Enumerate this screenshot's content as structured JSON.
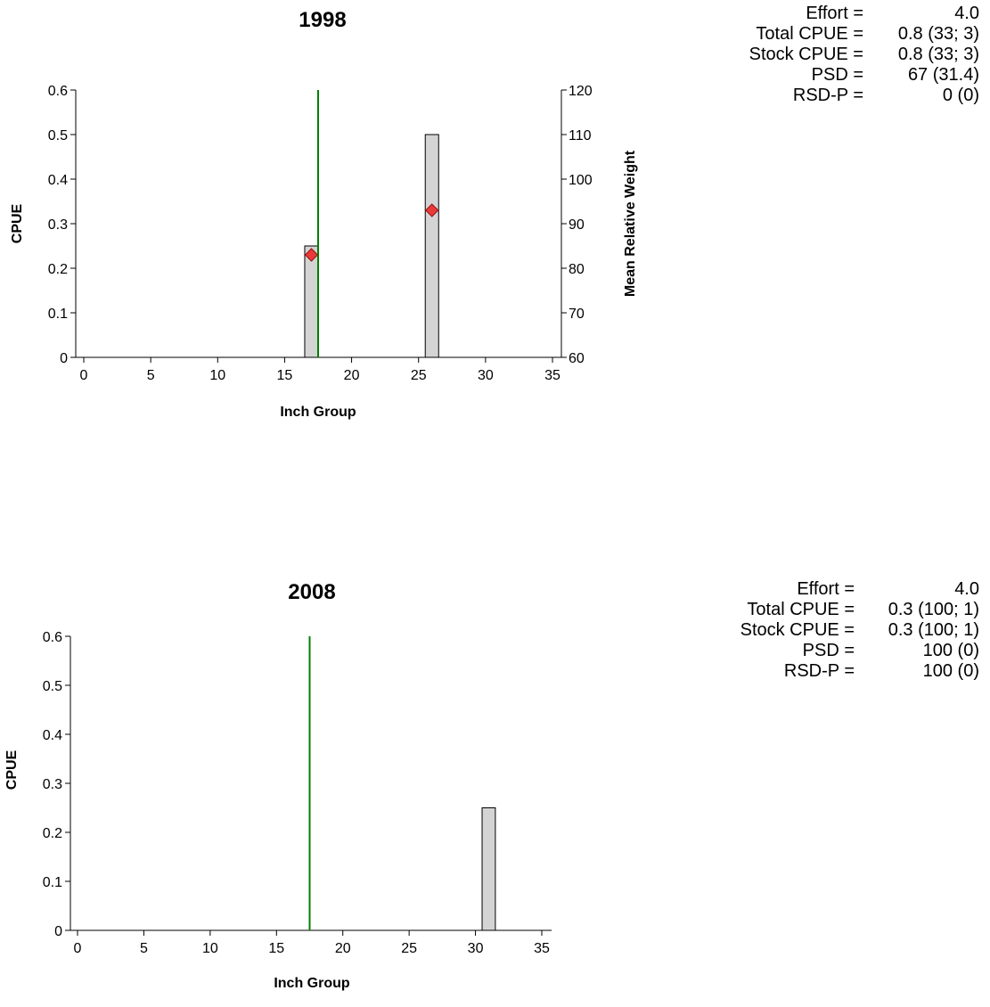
{
  "chart_data": [
    {
      "type": "bar",
      "title": "1998",
      "xlabel": "Inch Group",
      "ylabel": "CPUE",
      "y2label": "Mean Relative Weight",
      "xlim": [
        0,
        35
      ],
      "ylim": [
        0,
        0.6
      ],
      "y2lim": [
        60,
        120
      ],
      "xticks": [
        0,
        5,
        10,
        15,
        20,
        25,
        30,
        35
      ],
      "yticks": [
        0,
        0.1,
        0.2,
        0.3,
        0.4,
        0.5,
        0.6
      ],
      "y2ticks": [
        60,
        70,
        80,
        90,
        100,
        110,
        120
      ],
      "x": [
        17,
        26
      ],
      "values": [
        0.25,
        0.5
      ],
      "relative_weight": [
        {
          "x": 17,
          "y": 83
        },
        {
          "x": 26,
          "y": 93
        }
      ],
      "reference_line_x": 17.5,
      "colors": {
        "bar": "#d4d4d4",
        "line": "#008000",
        "marker": "#e83a3a"
      },
      "stats": [
        {
          "label": "Effort =",
          "value": "4.0"
        },
        {
          "label": "Total CPUE =",
          "value": "0.8 (33; 3)"
        },
        {
          "label": "Stock CPUE =",
          "value": "0.8 (33; 3)"
        },
        {
          "label": "PSD =",
          "value": "67 (31.4)"
        },
        {
          "label": "RSD-P =",
          "value": "0 (0)"
        }
      ]
    },
    {
      "type": "bar",
      "title": "2008",
      "xlabel": "Inch Group",
      "ylabel": "CPUE",
      "xlim": [
        0,
        35
      ],
      "ylim": [
        0,
        0.6
      ],
      "xticks": [
        0,
        5,
        10,
        15,
        20,
        25,
        30,
        35
      ],
      "yticks": [
        0,
        0.1,
        0.2,
        0.3,
        0.4,
        0.5,
        0.6
      ],
      "x": [
        31
      ],
      "values": [
        0.25
      ],
      "reference_line_x": 17.5,
      "colors": {
        "bar": "#d4d4d4",
        "line": "#008000"
      },
      "stats": [
        {
          "label": "Effort =",
          "value": "4.0"
        },
        {
          "label": "Total CPUE =",
          "value": "0.3 (100; 1)"
        },
        {
          "label": "Stock CPUE =",
          "value": "0.3 (100; 1)"
        },
        {
          "label": "PSD =",
          "value": "100 (0)"
        },
        {
          "label": "RSD-P =",
          "value": "100 (0)"
        }
      ]
    }
  ]
}
